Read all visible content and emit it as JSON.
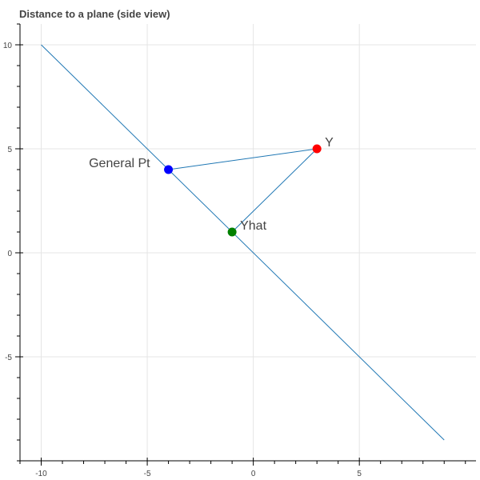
{
  "chart_data": {
    "type": "line",
    "title": "Distance to a plane (side view)",
    "xlabel": "",
    "ylabel": "",
    "xlim": [
      -11,
      10.5
    ],
    "ylim": [
      -10,
      11
    ],
    "x_ticks": [
      -10,
      -5,
      0,
      5
    ],
    "y_ticks": [
      -5,
      0,
      5,
      10
    ],
    "grid": true,
    "colors": {
      "line": "#1f77b4",
      "grid": "#e5e5e5",
      "axis": "#000000"
    },
    "series": [
      {
        "kind": "line",
        "points": [
          [
            -10,
            10
          ],
          [
            9,
            -9
          ]
        ]
      },
      {
        "kind": "line",
        "points": [
          [
            -4,
            4
          ],
          [
            3,
            5
          ]
        ]
      },
      {
        "kind": "line",
        "points": [
          [
            3,
            5
          ],
          [
            -1,
            1
          ]
        ]
      }
    ],
    "points": [
      {
        "label": "General Pt",
        "x": -4,
        "y": 4,
        "color": "#0000ff",
        "label_side": "left"
      },
      {
        "label": "Y",
        "x": 3,
        "y": 5,
        "color": "#ff0000",
        "label_side": "right"
      },
      {
        "label": "Yhat",
        "x": -1,
        "y": 1,
        "color": "#008000",
        "label_side": "right"
      }
    ]
  }
}
